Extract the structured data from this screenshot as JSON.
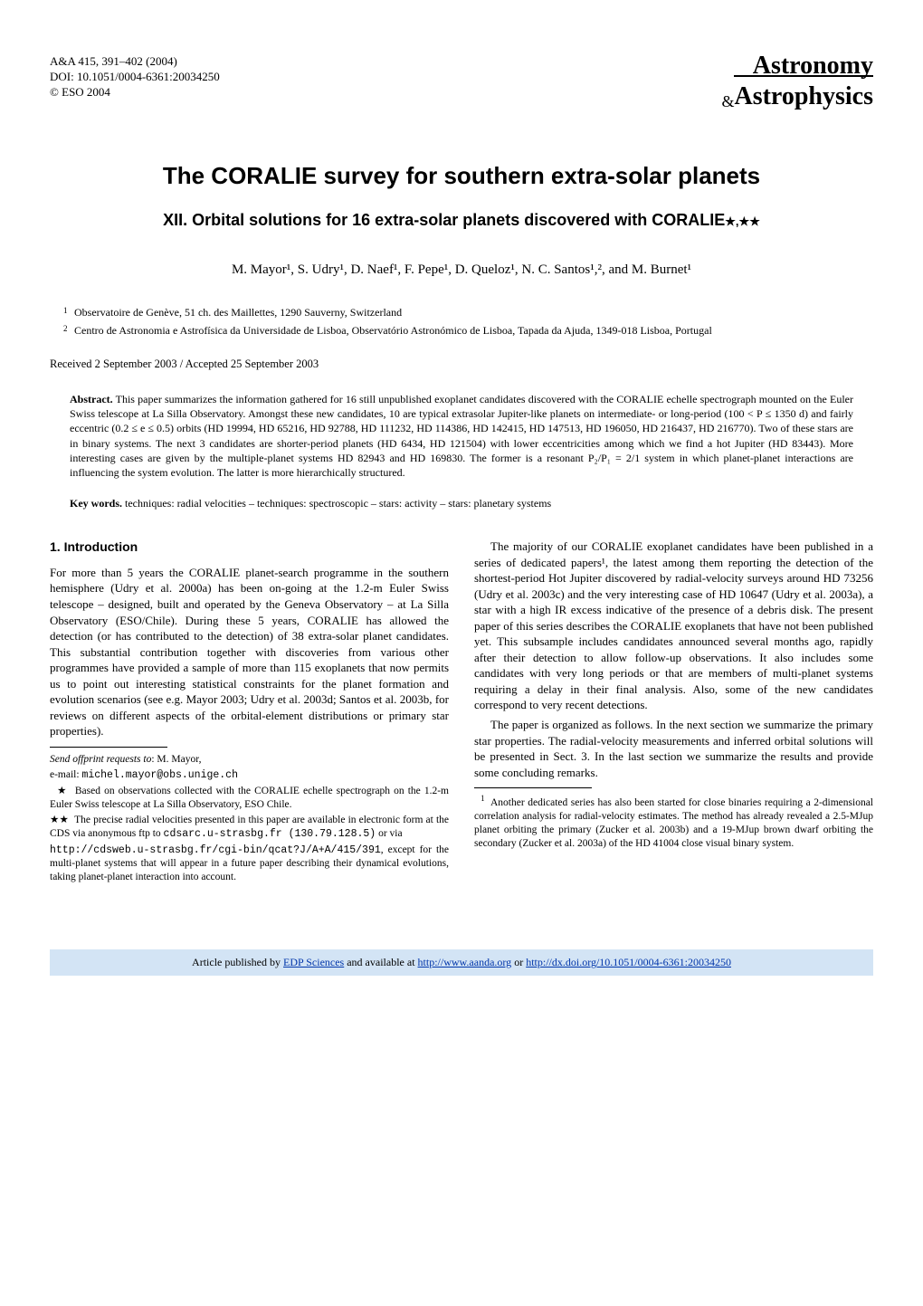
{
  "header": {
    "journal_ref": "A&A 415, 391–402 (2004)",
    "doi": "DOI: 10.1051/0004-6361:20034250",
    "copyright": "© ESO 2004",
    "brand_line1": "Astronomy",
    "brand_amp": "&",
    "brand_line2": "Astrophysics"
  },
  "title": "The CORALIE survey for southern extra-solar planets",
  "subtitle_prefix": "XII. Orbital solutions for 16 extra-solar planets discovered with CORALIE",
  "subtitle_stars": "★,★★",
  "authors_html": "M. Mayor¹, S. Udry¹, D. Naef¹, F. Pepe¹, D. Queloz¹, N. C. Santos¹,², and M. Burnet¹",
  "affiliations": [
    {
      "num": "1",
      "text": "Observatoire de Genève, 51 ch. des Maillettes, 1290 Sauverny, Switzerland"
    },
    {
      "num": "2",
      "text": "Centro de Astronomia e Astrofísica da Universidade de Lisboa, Observatório Astronómico de Lisboa, Tapada da Ajuda, 1349-018 Lisboa, Portugal"
    }
  ],
  "received": "Received 2 September 2003 / Accepted 25 September 2003",
  "abstract_label": "Abstract.",
  "abstract": "This paper summarizes the information gathered for 16 still unpublished exoplanet candidates discovered with the CORALIE echelle spectrograph mounted on the Euler Swiss telescope at La Silla Observatory. Amongst these new candidates, 10 are typical extrasolar Jupiter-like planets on intermediate- or long-period (100 < P ≤ 1350 d) and fairly eccentric (0.2 ≤ e ≤ 0.5) orbits (HD 19994, HD 65216, HD 92788, HD 111232, HD 114386, HD 142415, HD 147513, HD 196050, HD 216437, HD 216770). Two of these stars are in binary systems. The next 3 candidates are shorter-period planets (HD 6434, HD 121504) with lower eccentricities among which we find a hot Jupiter (HD 83443). More interesting cases are given by the multiple-planet systems HD 82943 and HD 169830. The former is a resonant P₂/P₁ = 2/1 system in which planet-planet interactions are influencing the system evolution. The latter is more hierarchically structured.",
  "keywords_label": "Key words.",
  "keywords": "techniques: radial velocities – techniques: spectroscopic – stars: activity – stars: planetary systems",
  "section1_heading": "1. Introduction",
  "col_left_p1": "For more than 5 years the CORALIE planet-search programme in the southern hemisphere (Udry et al. 2000a) has been on-going at the 1.2-m Euler Swiss telescope – designed, built and operated by the Geneva Observatory – at La Silla Observatory (ESO/Chile). During these 5 years, CORALIE has allowed the detection (or has contributed to the detection) of 38 extra-solar planet candidates. This substantial contribution together with discoveries from various other programmes have provided a sample of more than 115 exoplanets that now permits us to point out interesting statistical constraints for the planet formation and evolution scenarios (see e.g. Mayor 2003; Udry et al. 2003d; Santos et al. 2003b, for reviews on different aspects of the orbital-element distributions or primary star properties).",
  "footnotes_left": {
    "offprint_label": "Send offprint requests to",
    "offprint_name": ": M. Mayor,",
    "email_label": "e-mail: ",
    "email": "michel.mayor@obs.unige.ch",
    "star1_mark": "★",
    "star1_text": "Based on observations collected with the CORALIE echelle spectrograph on the 1.2-m Euler Swiss telescope at La Silla Observatory, ESO Chile.",
    "star2_mark": "★★",
    "star2_text_a": "The precise radial velocities presented in this paper are available in electronic form at the CDS via anonymous ftp to ",
    "star2_code1": "cdsarc.u-strasbg.fr (130.79.128.5)",
    "star2_text_b": " or via",
    "star2_code2": "http://cdsweb.u-strasbg.fr/cgi-bin/qcat?J/A+A/415/391",
    "star2_text_c": ", except for the multi-planet systems that will appear in a future paper describing their dynamical evolutions, taking planet-planet interaction into account."
  },
  "col_right_p1": "The majority of our CORALIE exoplanet candidates have been published in a series of dedicated papers¹, the latest among them reporting the detection of the shortest-period Hot Jupiter discovered by radial-velocity surveys around HD 73256 (Udry et al. 2003c) and the very interesting case of HD 10647 (Udry et al. 2003a), a star with a high IR excess indicative of the presence of a debris disk. The present paper of this series describes the CORALIE exoplanets that have not been published yet. This subsample includes candidates announced several months ago, rapidly after their detection to allow follow-up observations. It also includes some candidates with very long periods or that are members of multi-planet systems requiring a delay in their final analysis. Also, some of the new candidates correspond to very recent detections.",
  "col_right_p2": "The paper is organized as follows. In the next section we summarize the primary star properties. The radial-velocity measurements and inferred orbital solutions will be presented in Sect. 3. In the last section we summarize the results and provide some concluding remarks.",
  "footnotes_right": {
    "num": "1",
    "text": "Another dedicated series has also been started for close binaries requiring a 2-dimensional correlation analysis for radial-velocity estimates. The method has already revealed a 2.5-MJup planet orbiting the primary (Zucker et al. 2003b) and a 19-MJup brown dwarf orbiting the secondary (Zucker et al. 2003a) of the HD 41004 close visual binary system."
  },
  "bottom": {
    "prefix": "Article published by ",
    "link1": "EDP Sciences",
    "mid1": " and available at ",
    "link2": "http://www.aanda.org",
    "mid2": " or ",
    "link3": "http://dx.doi.org/10.1051/0004-6361:20034250"
  },
  "colors": {
    "bottom_bg": "#d3e4f5",
    "link": "#0035aa",
    "text": "#000000",
    "background": "#ffffff"
  }
}
